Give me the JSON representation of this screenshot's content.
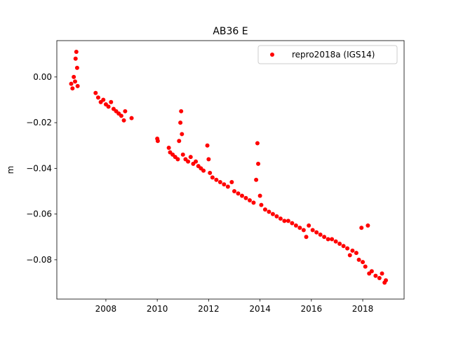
{
  "chart_data": {
    "type": "scatter",
    "title": "AB36 E",
    "ylabel": "m",
    "xlim": [
      2006.09,
      2019.61
    ],
    "ylim": [
      -0.0972,
      0.0159
    ],
    "xticks": [
      2008,
      2010,
      2012,
      2014,
      2016,
      2018
    ],
    "yticks": [
      {
        "value": -0.08,
        "label": "−0.08"
      },
      {
        "value": -0.06,
        "label": "−0.06"
      },
      {
        "value": -0.04,
        "label": "−0.04"
      },
      {
        "value": -0.02,
        "label": "−0.02"
      },
      {
        "value": 0,
        "label": "0.00"
      }
    ],
    "legend_position": "upper right",
    "series": [
      {
        "name": "repro2018a (IGS14)",
        "color": "#ff0000",
        "x": [
          2006.65,
          2006.7,
          2006.75,
          2006.8,
          2006.82,
          2006.85,
          2006.88,
          2006.9,
          2007.6,
          2007.7,
          2007.8,
          2007.9,
          2008.0,
          2008.1,
          2008.2,
          2008.3,
          2008.4,
          2008.5,
          2008.6,
          2008.7,
          2008.75,
          2009.0,
          2010.0,
          2010.02,
          2010.45,
          2010.5,
          2010.6,
          2010.7,
          2010.8,
          2010.85,
          2010.9,
          2010.93,
          2010.96,
          2011.0,
          2011.1,
          2011.2,
          2011.3,
          2011.4,
          2011.5,
          2011.6,
          2011.7,
          2011.8,
          2011.95,
          2012.0,
          2012.05,
          2012.15,
          2012.3,
          2012.45,
          2012.6,
          2012.75,
          2012.9,
          2013.0,
          2013.15,
          2013.3,
          2013.45,
          2013.6,
          2013.75,
          2013.85,
          2013.9,
          2013.93,
          2014.0,
          2014.05,
          2014.2,
          2014.35,
          2014.5,
          2014.65,
          2014.8,
          2014.95,
          2015.1,
          2015.25,
          2015.4,
          2015.55,
          2015.7,
          2015.8,
          2015.9,
          2016.05,
          2016.2,
          2016.35,
          2016.5,
          2016.65,
          2016.8,
          2016.95,
          2017.1,
          2017.25,
          2017.4,
          2017.5,
          2017.6,
          2017.75,
          2017.85,
          2017.95,
          2018.0,
          2018.1,
          2018.2,
          2018.25,
          2018.35,
          2018.5,
          2018.65,
          2018.75,
          2018.85,
          2018.9
        ],
        "values": [
          -0.003,
          -0.005,
          0.0,
          -0.002,
          0.008,
          0.011,
          0.004,
          -0.004,
          -0.007,
          -0.009,
          -0.011,
          -0.01,
          -0.012,
          -0.013,
          -0.011,
          -0.014,
          -0.015,
          -0.016,
          -0.017,
          -0.019,
          -0.015,
          -0.018,
          -0.027,
          -0.028,
          -0.031,
          -0.033,
          -0.034,
          -0.035,
          -0.036,
          -0.028,
          -0.02,
          -0.015,
          -0.025,
          -0.034,
          -0.036,
          -0.037,
          -0.035,
          -0.038,
          -0.037,
          -0.039,
          -0.04,
          -0.041,
          -0.03,
          -0.036,
          -0.042,
          -0.044,
          -0.045,
          -0.046,
          -0.047,
          -0.048,
          -0.046,
          -0.05,
          -0.051,
          -0.052,
          -0.053,
          -0.054,
          -0.055,
          -0.045,
          -0.029,
          -0.038,
          -0.052,
          -0.056,
          -0.058,
          -0.059,
          -0.06,
          -0.061,
          -0.062,
          -0.063,
          -0.063,
          -0.064,
          -0.065,
          -0.066,
          -0.067,
          -0.07,
          -0.065,
          -0.067,
          -0.068,
          -0.069,
          -0.07,
          -0.071,
          -0.071,
          -0.072,
          -0.073,
          -0.074,
          -0.075,
          -0.078,
          -0.076,
          -0.077,
          -0.08,
          -0.066,
          -0.081,
          -0.083,
          -0.065,
          -0.086,
          -0.085,
          -0.087,
          -0.088,
          -0.086,
          -0.09,
          -0.089
        ]
      }
    ]
  }
}
